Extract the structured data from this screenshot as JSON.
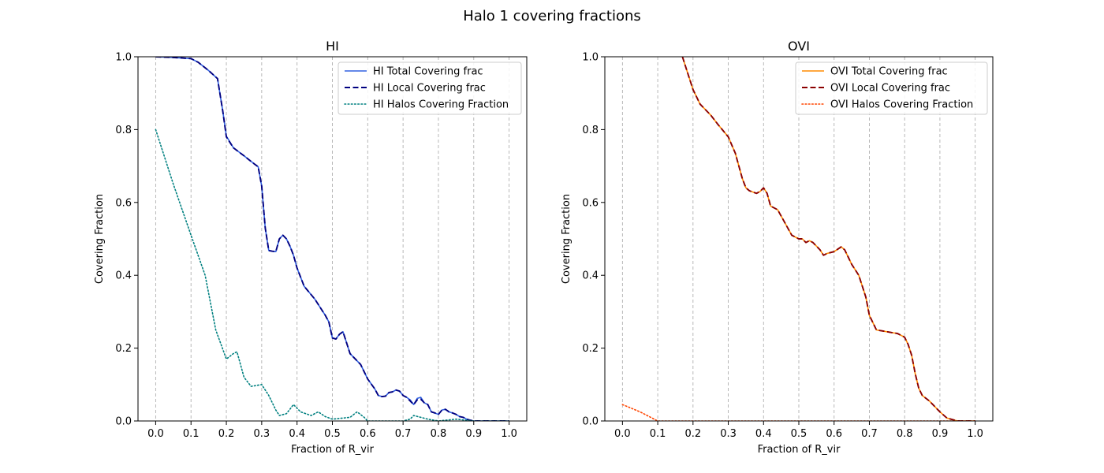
{
  "figure": {
    "suptitle": "Halo 1 covering fractions"
  },
  "chart_data": [
    {
      "type": "line",
      "title": "HI",
      "xlabel": "Fraction of R_vir",
      "ylabel": "Covering Fraction",
      "xlim": [
        -0.05,
        1.05
      ],
      "ylim": [
        0,
        1
      ],
      "xticks": [
        0.0,
        0.1,
        0.2,
        0.3,
        0.4,
        0.5,
        0.6,
        0.7,
        0.8,
        0.9,
        1.0
      ],
      "xtick_labels": [
        "0.0",
        "0.1",
        "0.2",
        "0.3",
        "0.4",
        "0.5",
        "0.6",
        "0.7",
        "0.8",
        "0.9",
        "1.0"
      ],
      "yticks": [
        0.0,
        0.2,
        0.4,
        0.6,
        0.8,
        1.0
      ],
      "ytick_labels": [
        "0.0",
        "0.2",
        "0.4",
        "0.6",
        "0.8",
        "1.0"
      ],
      "xgrid": true,
      "ygrid": false,
      "legend_position": "upper right",
      "series": [
        {
          "name": "HI Total Covering frac",
          "color": "#3060e0",
          "style": "solid",
          "x": [
            0.0,
            0.05,
            0.1,
            0.12,
            0.15,
            0.175,
            0.19,
            0.2,
            0.22,
            0.25,
            0.28,
            0.29,
            0.3,
            0.31,
            0.32,
            0.33,
            0.34,
            0.35,
            0.36,
            0.37,
            0.38,
            0.39,
            0.4,
            0.42,
            0.45,
            0.48,
            0.49,
            0.5,
            0.51,
            0.52,
            0.53,
            0.55,
            0.58,
            0.6,
            0.62,
            0.63,
            0.64,
            0.65,
            0.66,
            0.67,
            0.68,
            0.69,
            0.7,
            0.71,
            0.72,
            0.73,
            0.74,
            0.75,
            0.76,
            0.77,
            0.78,
            0.79,
            0.8,
            0.81,
            0.82,
            0.83,
            0.84,
            0.85,
            0.86,
            0.87,
            0.88,
            0.89,
            0.9,
            0.95,
            1.0
          ],
          "y": [
            1.0,
            0.998,
            0.995,
            0.985,
            0.962,
            0.94,
            0.85,
            0.782,
            0.75,
            0.728,
            0.705,
            0.698,
            0.645,
            0.53,
            0.468,
            0.466,
            0.465,
            0.5,
            0.51,
            0.5,
            0.48,
            0.455,
            0.42,
            0.37,
            0.335,
            0.29,
            0.272,
            0.228,
            0.225,
            0.238,
            0.245,
            0.185,
            0.155,
            0.115,
            0.088,
            0.07,
            0.067,
            0.068,
            0.078,
            0.08,
            0.085,
            0.082,
            0.07,
            0.065,
            0.058,
            0.045,
            0.062,
            0.065,
            0.05,
            0.045,
            0.025,
            0.022,
            0.018,
            0.03,
            0.032,
            0.025,
            0.022,
            0.018,
            0.012,
            0.01,
            0.005,
            0.002,
            0.0,
            0.0,
            0.0
          ]
        },
        {
          "name": " HI Local Covering frac",
          "color": "#000080",
          "style": "dashed",
          "x": [
            0.0,
            0.05,
            0.1,
            0.12,
            0.15,
            0.175,
            0.19,
            0.2,
            0.22,
            0.25,
            0.28,
            0.29,
            0.3,
            0.31,
            0.32,
            0.33,
            0.34,
            0.35,
            0.36,
            0.37,
            0.38,
            0.39,
            0.4,
            0.42,
            0.45,
            0.48,
            0.49,
            0.5,
            0.51,
            0.52,
            0.53,
            0.55,
            0.58,
            0.6,
            0.62,
            0.63,
            0.64,
            0.65,
            0.66,
            0.67,
            0.68,
            0.69,
            0.7,
            0.71,
            0.72,
            0.73,
            0.74,
            0.75,
            0.76,
            0.77,
            0.78,
            0.79,
            0.8,
            0.81,
            0.82,
            0.83,
            0.84,
            0.85,
            0.86,
            0.87,
            0.88,
            0.89,
            0.9,
            0.95,
            1.0
          ],
          "y": [
            1.0,
            0.998,
            0.995,
            0.985,
            0.962,
            0.94,
            0.85,
            0.78,
            0.75,
            0.728,
            0.705,
            0.698,
            0.645,
            0.53,
            0.468,
            0.466,
            0.465,
            0.5,
            0.51,
            0.5,
            0.48,
            0.455,
            0.42,
            0.37,
            0.335,
            0.29,
            0.272,
            0.228,
            0.225,
            0.238,
            0.245,
            0.185,
            0.155,
            0.115,
            0.088,
            0.07,
            0.067,
            0.068,
            0.078,
            0.08,
            0.085,
            0.082,
            0.07,
            0.065,
            0.055,
            0.045,
            0.058,
            0.06,
            0.05,
            0.045,
            0.025,
            0.022,
            0.018,
            0.03,
            0.032,
            0.025,
            0.022,
            0.018,
            0.012,
            0.01,
            0.005,
            0.002,
            0.0,
            0.0,
            0.0
          ]
        },
        {
          "name": "HI Halos Covering Fraction",
          "color": "#008080",
          "style": "dotted",
          "x": [
            0.0,
            0.05,
            0.1,
            0.14,
            0.17,
            0.2,
            0.22,
            0.23,
            0.25,
            0.27,
            0.3,
            0.32,
            0.34,
            0.35,
            0.37,
            0.39,
            0.41,
            0.44,
            0.46,
            0.48,
            0.5,
            0.55,
            0.57,
            0.59,
            0.6,
            0.7,
            0.72,
            0.73,
            0.75,
            0.77,
            0.8,
            0.85,
            0.9,
            1.0
          ],
          "y": [
            0.8,
            0.65,
            0.51,
            0.4,
            0.25,
            0.17,
            0.185,
            0.19,
            0.12,
            0.095,
            0.1,
            0.07,
            0.03,
            0.015,
            0.02,
            0.045,
            0.025,
            0.015,
            0.025,
            0.012,
            0.005,
            0.01,
            0.025,
            0.01,
            0.0,
            0.0,
            0.005,
            0.015,
            0.01,
            0.005,
            0.0,
            0.005,
            0.0,
            0.0
          ]
        }
      ]
    },
    {
      "type": "line",
      "title": "OVI",
      "xlabel": "Fraction of R_vir",
      "ylabel": "Covering Fraction",
      "xlim": [
        -0.05,
        1.05
      ],
      "ylim": [
        0,
        1
      ],
      "xticks": [
        0.0,
        0.1,
        0.2,
        0.3,
        0.4,
        0.5,
        0.6,
        0.7,
        0.8,
        0.9,
        1.0
      ],
      "xtick_labels": [
        "0.0",
        "0.1",
        "0.2",
        "0.3",
        "0.4",
        "0.5",
        "0.6",
        "0.7",
        "0.8",
        "0.9",
        "1.0"
      ],
      "yticks": [
        0.0,
        0.2,
        0.4,
        0.6,
        0.8,
        1.0
      ],
      "ytick_labels": [
        "0.0",
        "0.2",
        "0.4",
        "0.6",
        "0.8",
        "1.0"
      ],
      "xgrid": true,
      "ygrid": false,
      "legend_position": "upper right",
      "series": [
        {
          "name": "OVI Total Covering frac",
          "color": "#ff8c00",
          "style": "solid",
          "x": [
            0.17,
            0.2,
            0.22,
            0.25,
            0.27,
            0.3,
            0.32,
            0.33,
            0.34,
            0.35,
            0.36,
            0.38,
            0.39,
            0.4,
            0.41,
            0.42,
            0.44,
            0.46,
            0.48,
            0.5,
            0.51,
            0.52,
            0.53,
            0.54,
            0.56,
            0.57,
            0.58,
            0.6,
            0.62,
            0.63,
            0.64,
            0.65,
            0.67,
            0.68,
            0.69,
            0.7,
            0.72,
            0.75,
            0.78,
            0.79,
            0.8,
            0.81,
            0.82,
            0.83,
            0.84,
            0.85,
            0.87,
            0.88,
            0.9,
            0.92,
            0.95,
            1.0
          ],
          "y": [
            1.0,
            0.91,
            0.87,
            0.84,
            0.815,
            0.78,
            0.735,
            0.7,
            0.665,
            0.64,
            0.632,
            0.625,
            0.63,
            0.64,
            0.625,
            0.59,
            0.58,
            0.545,
            0.51,
            0.5,
            0.5,
            0.49,
            0.495,
            0.49,
            0.47,
            0.455,
            0.46,
            0.465,
            0.478,
            0.47,
            0.45,
            0.43,
            0.4,
            0.37,
            0.34,
            0.29,
            0.25,
            0.245,
            0.24,
            0.235,
            0.23,
            0.21,
            0.18,
            0.13,
            0.09,
            0.07,
            0.055,
            0.045,
            0.025,
            0.008,
            0.0,
            0.0
          ]
        },
        {
          "name": " OVI Local Covering frac",
          "color": "#8b0000",
          "style": "dashed",
          "x": [
            0.17,
            0.2,
            0.22,
            0.25,
            0.27,
            0.3,
            0.32,
            0.33,
            0.34,
            0.35,
            0.36,
            0.38,
            0.39,
            0.4,
            0.41,
            0.42,
            0.44,
            0.46,
            0.48,
            0.5,
            0.51,
            0.52,
            0.53,
            0.54,
            0.56,
            0.57,
            0.58,
            0.6,
            0.62,
            0.63,
            0.64,
            0.65,
            0.67,
            0.68,
            0.69,
            0.7,
            0.72,
            0.75,
            0.78,
            0.79,
            0.8,
            0.81,
            0.82,
            0.83,
            0.84,
            0.85,
            0.87,
            0.88,
            0.9,
            0.92,
            0.95,
            1.0
          ],
          "y": [
            1.0,
            0.91,
            0.87,
            0.84,
            0.815,
            0.78,
            0.735,
            0.7,
            0.665,
            0.64,
            0.632,
            0.625,
            0.63,
            0.64,
            0.625,
            0.59,
            0.58,
            0.545,
            0.51,
            0.5,
            0.5,
            0.49,
            0.495,
            0.49,
            0.47,
            0.455,
            0.46,
            0.465,
            0.478,
            0.47,
            0.45,
            0.43,
            0.4,
            0.37,
            0.34,
            0.29,
            0.25,
            0.245,
            0.24,
            0.235,
            0.23,
            0.21,
            0.18,
            0.13,
            0.09,
            0.07,
            0.055,
            0.045,
            0.025,
            0.008,
            0.0,
            0.0
          ]
        },
        {
          "name": "OVI Halos Covering Fraction",
          "color": "#ff4500",
          "style": "dotted",
          "x": [
            0.0,
            0.05,
            0.1,
            0.2,
            0.3,
            0.4,
            0.5,
            0.6,
            0.7,
            0.8,
            0.9,
            1.0
          ],
          "y": [
            0.045,
            0.025,
            0.0,
            0.0,
            0.0,
            0.0,
            0.0,
            0.0,
            0.0,
            0.0,
            0.0,
            0.0
          ]
        }
      ]
    }
  ]
}
